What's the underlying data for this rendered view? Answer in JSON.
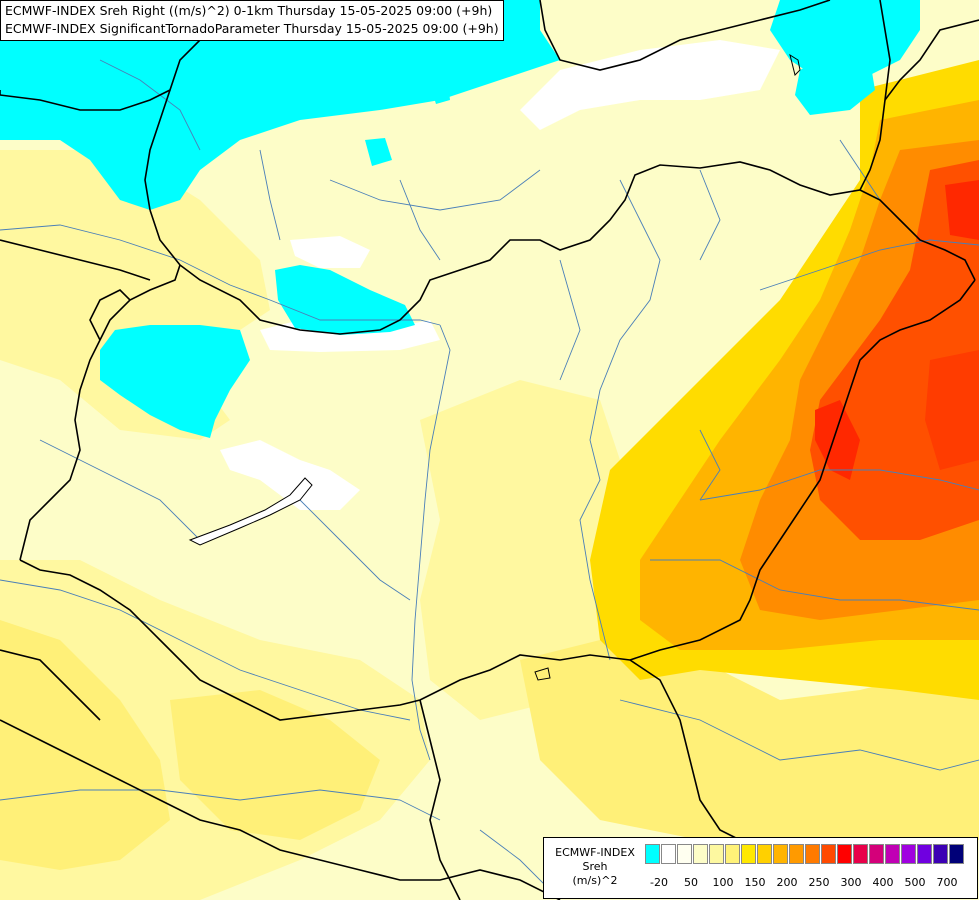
{
  "header": {
    "line1": "ECMWF-INDEX Sreh Right ((m/s)^2) 0-1km Thursday 15-05-2025 09:00 (+9h)",
    "line2": "ECMWF-INDEX SignificantTornadoParameter Thursday 15-05-2025 09:00 (+9h)"
  },
  "legend": {
    "title_line1": "ECMWF-INDEX",
    "title_line2": "Sreh",
    "title_line3": "(m/s)^2",
    "colors": [
      "#00ffff",
      "#ffffff",
      "#fffff0",
      "#fdfdc8",
      "#fdf8a0",
      "#fff278",
      "#ffe800",
      "#ffd000",
      "#ffb400",
      "#ff9a00",
      "#ff7a00",
      "#ff4a00",
      "#ff0000",
      "#e8004a",
      "#d4007a",
      "#c000b4",
      "#a000e0",
      "#7000e0",
      "#3c00b4",
      "#000078"
    ],
    "ticks": [
      "-20",
      "50",
      "100",
      "150",
      "200",
      "250",
      "300",
      "400",
      "500",
      "700"
    ]
  },
  "palette": {
    "cyan": "#00ffff",
    "white": "#ffffff",
    "paleyellow": "#fdfdc8",
    "lightyellow": "#fff8a0",
    "yellow": "#fff078",
    "gold": "#ffdc00",
    "orange": "#ffb400",
    "darkorange": "#ff8c00",
    "redorange": "#ff5000",
    "red": "#ff2800"
  }
}
